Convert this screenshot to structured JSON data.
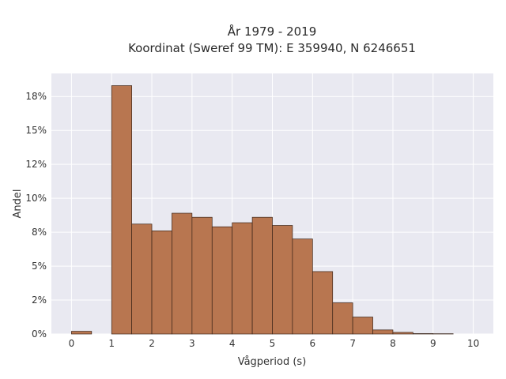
{
  "chart_data": {
    "type": "bar",
    "title_lines": [
      "År 1979 - 2019",
      "Koordinat (Sweref 99 TM): E 359940, N 6246651"
    ],
    "xlabel": "Vågperiod (s)",
    "ylabel": "Andel",
    "bin_width": 0.5,
    "x": [
      0,
      0.5,
      1,
      1.5,
      2,
      2.5,
      3,
      3.5,
      4,
      4.5,
      5,
      5.5,
      6,
      6.5,
      7,
      7.5,
      8,
      8.5,
      9,
      9.5
    ],
    "values": [
      0.2,
      0,
      18.3,
      8.1,
      7.6,
      8.9,
      8.6,
      7.9,
      8.2,
      8.6,
      8.0,
      7.0,
      4.6,
      2.3,
      1.25,
      0.3,
      0.12,
      0.03,
      0.02,
      0
    ],
    "xticks": [
      "0",
      "1",
      "2",
      "3",
      "4",
      "5",
      "6",
      "7",
      "8",
      "9",
      "10"
    ],
    "yticks": [
      "0%",
      "2%",
      "5%",
      "8%",
      "10%",
      "12%",
      "15%",
      "18%"
    ],
    "xlim": [
      -0.5,
      10.5
    ],
    "ylim": [
      0,
      19.2
    ],
    "grid": true,
    "colors": {
      "bar_fill": "#b87650",
      "bar_edge": "#3a2418",
      "plot_bg": "#e9e9f1",
      "grid": "#ffffff"
    }
  }
}
